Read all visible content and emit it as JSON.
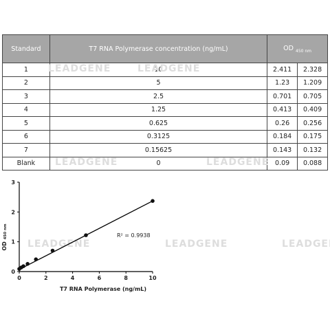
{
  "watermark": "LEADGENE",
  "table": {
    "header": [
      "Standard",
      "T7 RNA Polymerase concentration (ng/mL)",
      "OD",
      "450 nm"
    ],
    "rows": [
      [
        "1",
        "10",
        "2.411",
        "2.328"
      ],
      [
        "2",
        "5",
        "1.23",
        "1.209"
      ],
      [
        "3",
        "2.5",
        "0.701",
        "0.705"
      ],
      [
        "4",
        "1.25",
        "0.413",
        "0.409"
      ],
      [
        "5",
        "0.625",
        "0.26",
        "0.256"
      ],
      [
        "6",
        "0.3125",
        "0.184",
        "0.175"
      ],
      [
        "7",
        "0.15625",
        "0.143",
        "0.132"
      ],
      [
        "Blank",
        "0",
        "0.09",
        "0.088"
      ]
    ]
  },
  "chart_data": {
    "type": "scatter",
    "x_label": "T7 RNA  Polymerase (ng/mL)",
    "y_label": "OD",
    "y_label_sub": "450 nm",
    "annotation": "R² = 0.9938",
    "x": [
      10,
      5,
      2.5,
      1.25,
      0.625,
      0.3125,
      0.15625,
      0
    ],
    "values": [
      2.37,
      1.22,
      0.703,
      0.411,
      0.258,
      0.18,
      0.138,
      0.089
    ],
    "color": "#111",
    "fit_line": {
      "x": [
        0,
        10
      ],
      "values": [
        0.07,
        2.37
      ]
    },
    "xlim": [
      0,
      10
    ],
    "xticks": [
      0,
      2,
      4,
      6,
      8,
      10
    ],
    "ylim": [
      0,
      3
    ],
    "yticks": [
      0,
      1,
      2,
      3
    ]
  }
}
